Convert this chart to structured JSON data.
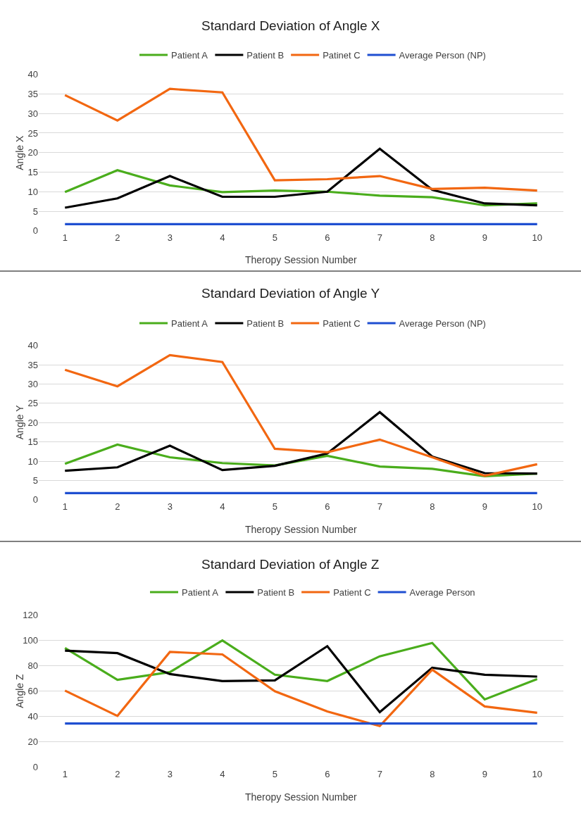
{
  "chart_data": [
    {
      "type": "line",
      "title": "Standard Deviation of Angle X",
      "xlabel": "Theropy Session Number",
      "ylabel": "Angle X",
      "categories": [
        "1",
        "2",
        "3",
        "4",
        "5",
        "6",
        "7",
        "8",
        "9",
        "10"
      ],
      "ylim": [
        0,
        40
      ],
      "yticks": [
        0,
        5,
        10,
        15,
        20,
        25,
        30,
        35,
        40
      ],
      "grid": "y",
      "legend": "top",
      "series": [
        {
          "name": "Patient A",
          "color": "#4aad1c",
          "values": [
            9.9,
            15.5,
            11.6,
            9.9,
            10.3,
            10,
            9,
            8.6,
            6.5,
            7
          ]
        },
        {
          "name": "Patient B",
          "color": "#000000",
          "values": [
            5.9,
            8.3,
            14,
            8.7,
            8.7,
            10,
            21,
            10.5,
            7,
            6.5
          ]
        },
        {
          "name": "Patinet C",
          "color": "#f26711",
          "values": [
            34.7,
            28.2,
            36.3,
            35.4,
            12.9,
            13.2,
            14,
            10.7,
            11,
            10.3
          ]
        },
        {
          "name": "Average Person (NP)",
          "color": "#1f4fd1",
          "values": [
            1.7,
            1.7,
            1.7,
            1.7,
            1.7,
            1.7,
            1.7,
            1.7,
            1.7,
            1.7
          ]
        }
      ]
    },
    {
      "type": "line",
      "title": "Standard Deviation of Angle Y",
      "xlabel": "Theropy Session Number",
      "ylabel": "Angle Y",
      "categories": [
        "1",
        "2",
        "3",
        "4",
        "5",
        "6",
        "7",
        "8",
        "9",
        "10"
      ],
      "ylim": [
        0,
        40
      ],
      "yticks": [
        0,
        5,
        10,
        15,
        20,
        25,
        30,
        35,
        40
      ],
      "grid": "y",
      "legend": "top",
      "series": [
        {
          "name": "Patient A",
          "color": "#4aad1c",
          "values": [
            9.3,
            14.3,
            11,
            9.5,
            8.9,
            11.4,
            8.6,
            8,
            6.1,
            6.8
          ]
        },
        {
          "name": "Patient B",
          "color": "#000000",
          "values": [
            7.5,
            8.4,
            14,
            7.7,
            8.8,
            12,
            22.7,
            11.2,
            6.9,
            6.8
          ]
        },
        {
          "name": "Patient C",
          "color": "#f26711",
          "values": [
            33.7,
            29.4,
            37.5,
            35.7,
            13.2,
            12.3,
            15.6,
            11,
            6.2,
            9.2
          ]
        },
        {
          "name": "Average Person (NP)",
          "color": "#1f4fd1",
          "values": [
            1.7,
            1.7,
            1.7,
            1.7,
            1.7,
            1.7,
            1.7,
            1.7,
            1.7,
            1.7
          ]
        }
      ]
    },
    {
      "type": "line",
      "title": "Standard Deviation of Angle Z",
      "xlabel": "Theropy Session Number",
      "ylabel": "Angle Z",
      "categories": [
        "1",
        "2",
        "3",
        "4",
        "5",
        "6",
        "7",
        "8",
        "9",
        "10"
      ],
      "ylim": [
        0,
        120
      ],
      "yticks": [
        0,
        20,
        40,
        60,
        80,
        100,
        120
      ],
      "grid": "y",
      "legend": "top",
      "series": [
        {
          "name": "Patient A",
          "color": "#4aad1c",
          "values": [
            94,
            69,
            75,
            100,
            73,
            68,
            87.5,
            98,
            53.5,
            69.5
          ]
        },
        {
          "name": "Patient B",
          "color": "#000000",
          "values": [
            92,
            90,
            73.5,
            68,
            68.5,
            95.5,
            43.5,
            78.5,
            73,
            71.5
          ]
        },
        {
          "name": "Patient C",
          "color": "#f26711",
          "values": [
            60.5,
            40.5,
            91,
            89,
            60,
            44,
            32.5,
            77,
            48,
            43
          ]
        },
        {
          "name": "Average Person",
          "color": "#1f4fd1",
          "values": [
            34.5,
            34.5,
            34.5,
            34.5,
            34.5,
            34.5,
            34.5,
            34.5,
            34.5,
            34.5
          ]
        }
      ]
    }
  ]
}
